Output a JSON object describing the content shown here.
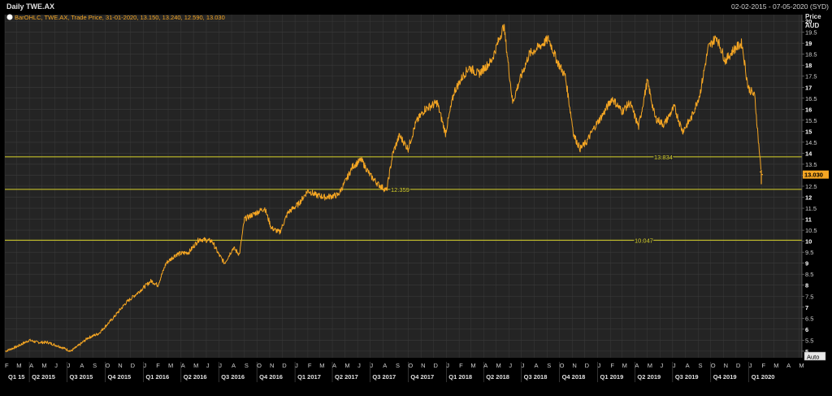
{
  "header": {
    "title": "Daily TWE.AX",
    "date_range": "02-02-2015 - 07-05-2020 (SYD)",
    "legend": "BarOHLC, TWE.AX, Trade Price, 31-01-2020, 13.150, 13.240, 12.590, 13.030"
  },
  "axis": {
    "price_title": "Price",
    "currency": "AUD",
    "auto_label": "Auto",
    "last_price_label": "13.030"
  },
  "colors": {
    "background": "#000000",
    "plot_bg": "#242424",
    "grid": "#3a3a3a",
    "series": "#f5a623",
    "hline": "#d8d22a",
    "last_price_bg": "#f5a623",
    "text": "#d8d8d8"
  },
  "chart_data": {
    "type": "ohlc",
    "title": "Daily TWE.AX",
    "ylabel": "Price AUD",
    "ylim": [
      4.7,
      20.3
    ],
    "y_ticks": [
      "5",
      "5.5",
      "6",
      "6.5",
      "7",
      "7.5",
      "8",
      "8.5",
      "9",
      "9.5",
      "10",
      "10.5",
      "11",
      "11.5",
      "12",
      "12.5",
      "13",
      "13.5",
      "14",
      "14.5",
      "15",
      "15.5",
      "16",
      "16.5",
      "17",
      "17.5",
      "18",
      "18.5",
      "19",
      "19.5",
      "20"
    ],
    "month_ticks": [
      "F",
      "M",
      "A",
      "M",
      "J",
      "J",
      "A",
      "S",
      "O",
      "N",
      "D",
      "J",
      "F",
      "M",
      "A",
      "M",
      "J",
      "J",
      "A",
      "S",
      "O",
      "N",
      "D",
      "J",
      "F",
      "M",
      "A",
      "M",
      "J",
      "J",
      "A",
      "S",
      "O",
      "N",
      "D",
      "J",
      "F",
      "M",
      "A",
      "M",
      "J",
      "J",
      "A",
      "S",
      "O",
      "N",
      "D",
      "J",
      "F",
      "M",
      "A",
      "M",
      "J",
      "J",
      "A",
      "S",
      "O",
      "N",
      "D",
      "J",
      "F",
      "M",
      "A",
      "M",
      "J",
      "J",
      "A",
      "S",
      "O",
      "N",
      "D",
      "J",
      "F",
      "M",
      "A",
      "M"
    ],
    "quarter_ticks": [
      "Q1 15",
      "Q2 2015",
      "Q3 2015",
      "Q4 2015",
      "Q1 2016",
      "Q2 2016",
      "Q3 2016",
      "Q4 2016",
      "Q1 2017",
      "Q2 2017",
      "Q3 2017",
      "Q4 2017",
      "Q1 2018",
      "Q2 2018",
      "Q3 2018",
      "Q4 2018",
      "Q1 2019",
      "Q2 2019",
      "Q3 2019",
      "Q4 2019",
      "Q1 2020"
    ],
    "horizontal_lines": [
      {
        "value": 13.834,
        "label": "13.834"
      },
      {
        "value": 12.359,
        "label": "12.359"
      },
      {
        "value": 10.047,
        "label": "10.047"
      }
    ],
    "last_bar": {
      "date": "31-01-2020",
      "open": 13.15,
      "high": 13.24,
      "low": 12.59,
      "close": 13.03
    },
    "series": [
      {
        "name": "TWE.AX",
        "x": [
          "2015-02-02",
          "2015-03-01",
          "2015-04-01",
          "2015-04-20",
          "2015-05-15",
          "2015-06-15",
          "2015-07-10",
          "2015-08-01",
          "2015-08-20",
          "2015-09-15",
          "2015-10-05",
          "2015-10-20",
          "2015-11-20",
          "2015-12-15",
          "2016-01-20",
          "2016-02-05",
          "2016-02-25",
          "2016-03-20",
          "2016-04-20",
          "2016-05-15",
          "2016-06-15",
          "2016-07-01",
          "2016-07-15",
          "2016-08-05",
          "2016-08-20",
          "2016-09-01",
          "2016-09-20",
          "2016-10-20",
          "2016-11-05",
          "2016-11-25",
          "2016-12-15",
          "2017-01-10",
          "2017-02-01",
          "2017-02-20",
          "2017-03-15",
          "2017-04-15",
          "2017-05-05",
          "2017-05-20",
          "2017-06-10",
          "2017-07-01",
          "2017-07-20",
          "2017-08-10",
          "2017-08-25",
          "2017-09-10",
          "2017-10-01",
          "2017-10-20",
          "2017-11-10",
          "2017-12-10",
          "2017-12-30",
          "2018-01-20",
          "2018-02-10",
          "2018-02-25",
          "2018-03-20",
          "2018-04-20",
          "2018-05-20",
          "2018-06-10",
          "2018-06-25",
          "2018-07-20",
          "2018-08-10",
          "2018-09-05",
          "2018-09-25",
          "2018-10-15",
          "2018-11-05",
          "2018-11-20",
          "2018-12-05",
          "2018-12-25",
          "2019-01-15",
          "2019-02-05",
          "2019-03-01",
          "2019-03-20",
          "2019-04-10",
          "2019-05-01",
          "2019-05-20",
          "2019-06-10",
          "2019-07-05",
          "2019-07-25",
          "2019-08-15",
          "2019-09-05",
          "2019-09-25",
          "2019-10-15",
          "2019-11-05",
          "2019-11-25",
          "2019-12-15",
          "2019-12-30",
          "2020-01-15",
          "2020-01-31"
        ],
        "close": [
          5.0,
          5.2,
          5.5,
          5.4,
          5.4,
          5.2,
          5.0,
          5.3,
          5.6,
          5.8,
          6.2,
          6.5,
          7.2,
          7.6,
          8.2,
          8.0,
          9.0,
          9.4,
          9.5,
          10.1,
          10.0,
          9.4,
          9.0,
          9.7,
          9.4,
          11.0,
          11.2,
          11.5,
          10.6,
          10.4,
          11.3,
          11.7,
          12.3,
          12.1,
          12.0,
          12.1,
          12.8,
          13.4,
          13.7,
          13.0,
          12.6,
          12.3,
          14.0,
          14.8,
          14.2,
          15.4,
          16.0,
          16.3,
          14.9,
          16.8,
          17.5,
          17.9,
          17.6,
          18.2,
          19.8,
          16.3,
          17.2,
          18.5,
          18.8,
          19.2,
          18.2,
          17.5,
          14.8,
          14.2,
          14.5,
          15.2,
          15.8,
          16.5,
          15.9,
          16.3,
          15.2,
          17.3,
          15.6,
          15.3,
          16.1,
          15.0,
          15.6,
          16.7,
          18.8,
          19.3,
          18.2,
          18.7,
          19.0,
          17.0,
          16.6,
          13.03
        ]
      }
    ]
  }
}
